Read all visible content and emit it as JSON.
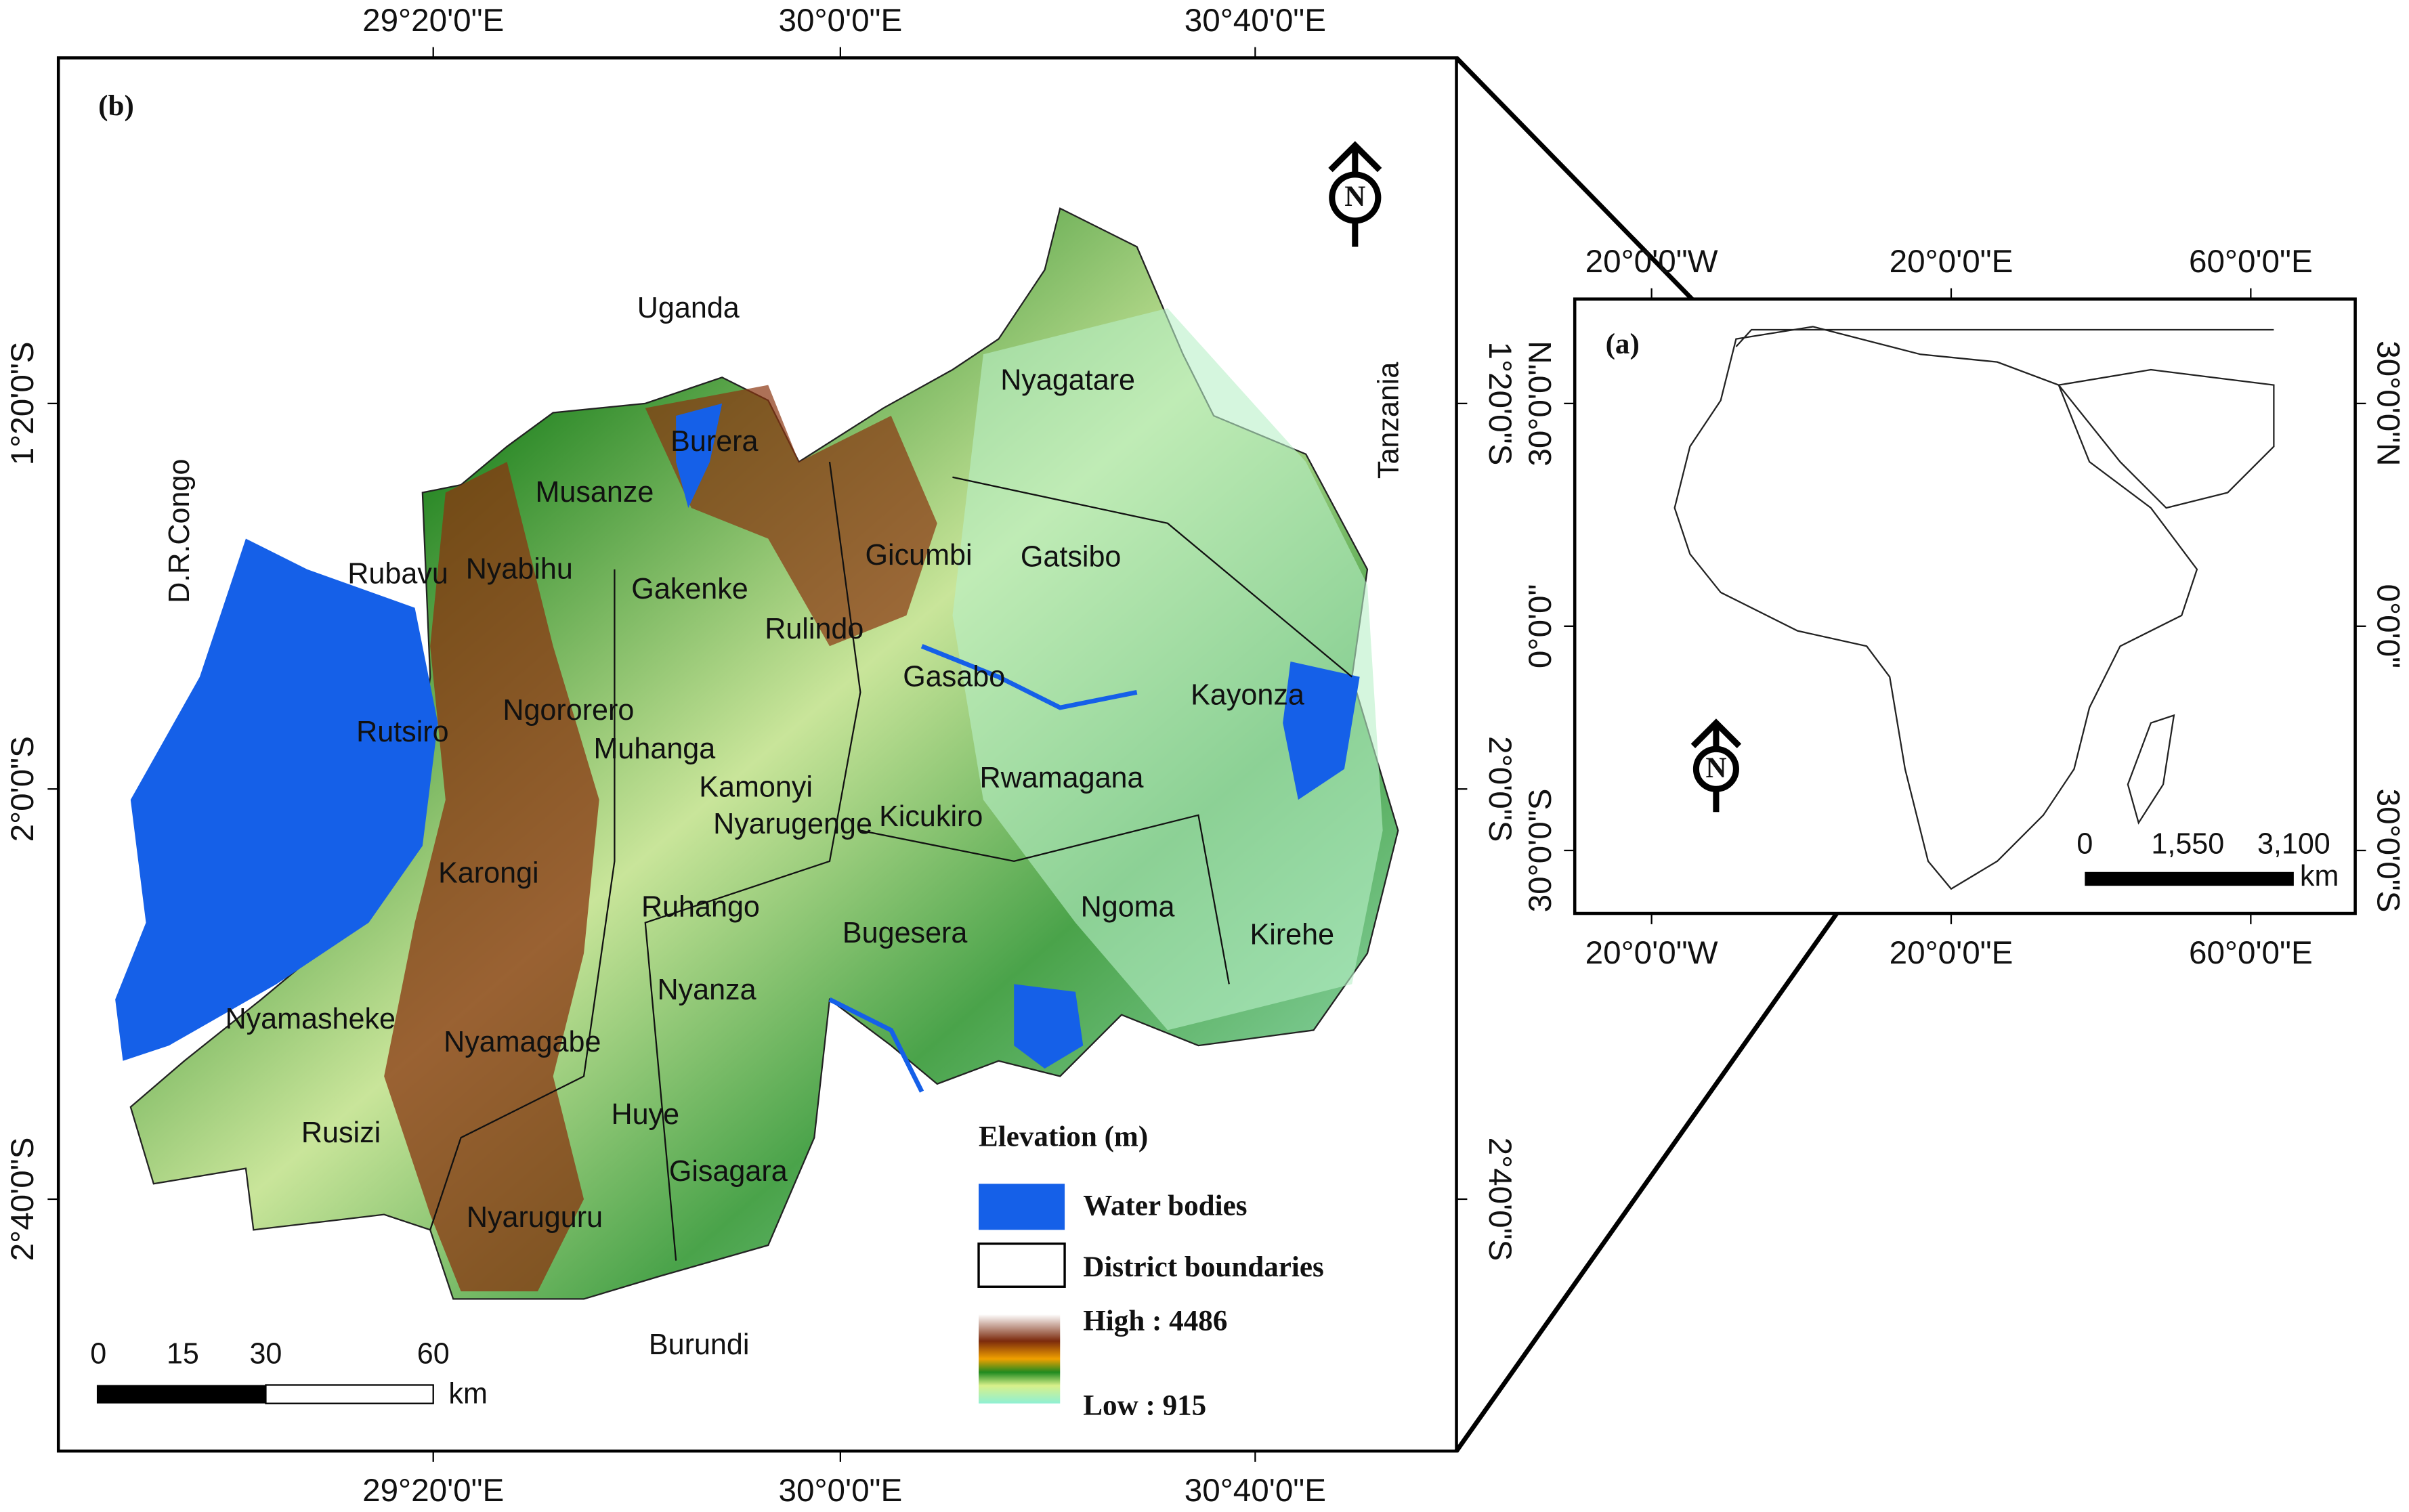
{
  "panel_b": {
    "label": "(b)",
    "top_ticks": [
      "29°20'0\"E",
      "30°0'0\"E",
      "30°40'0\"E"
    ],
    "bottom_ticks": [
      "29°20'0\"E",
      "30°0'0\"E",
      "30°40'0\"E"
    ],
    "left_ticks": [
      "1°20'0\"S",
      "2°0'0\"S",
      "2°40'0\"S"
    ],
    "right_ticks": [
      "1°20'0\"S",
      "2°0'0\"S",
      "2°40'0\"S"
    ],
    "north": "N",
    "countries": [
      "Uganda",
      "D.R.Congo",
      "Tanzania",
      "Burundi"
    ],
    "districts": [
      "Nyagatare",
      "Gatsibo",
      "Kayonza",
      "Gicumbi",
      "Burera",
      "Musanze",
      "Rubavu",
      "Nyabihu",
      "Gakenke",
      "Rulindo",
      "Gasabo",
      "Rutsiro",
      "Ngororero",
      "Muhanga",
      "Kamonyi",
      "Nyarugenge",
      "Kicukiro",
      "Rwamagana",
      "Karongi",
      "Ruhango",
      "Bugesera",
      "Ngoma",
      "Kirehe",
      "Nyanza",
      "Nyamasheke",
      "Nyamagabe",
      "Rusizi",
      "Huye",
      "Gisagara",
      "Nyaruguru"
    ],
    "legend": {
      "title": "Elevation (m)",
      "water": "Water bodies",
      "boundaries": "District boundaries",
      "high": "High : 4486",
      "low": "Low : 915"
    },
    "scale": {
      "labels": [
        "0",
        "15",
        "30",
        "60"
      ],
      "unit": "km"
    }
  },
  "panel_a": {
    "label": "(a)",
    "top_ticks": [
      "20°0'0\"W",
      "20°0'0\"E",
      "60°0'0\"E"
    ],
    "bottom_ticks": [
      "20°0'0\"W",
      "20°0'0\"E",
      "60°0'0\"E"
    ],
    "left_ticks": [
      "30°0'0\"N",
      "0°0'0\"",
      "30°0'0\"S"
    ],
    "right_ticks": [
      "30°0'0\"N",
      "0°0'0\"",
      "30°0'0\"S"
    ],
    "north": "N",
    "scale": {
      "labels": [
        "0",
        "1,550",
        "3,100"
      ],
      "unit": "km"
    }
  }
}
